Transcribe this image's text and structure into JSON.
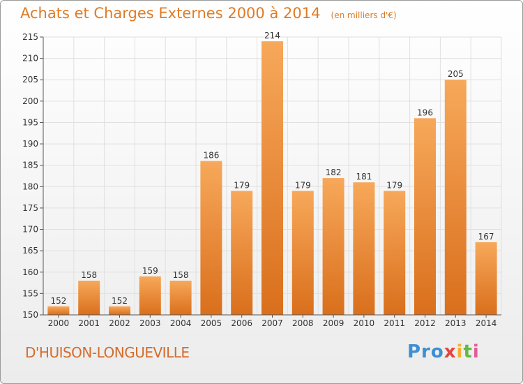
{
  "title": "Achats et Charges Externes 2000 à 2014",
  "subtitle": "(en milliers d'€)",
  "commune": "D'HUISON-LONGUEVILLE",
  "logo": [
    "Pro",
    "x",
    "i",
    "t",
    "i"
  ],
  "colors": {
    "bar_top": "#f7a85a",
    "bar_bottom": "#d96f1c",
    "title": "#e07a24",
    "grid": "#e0e0e0"
  },
  "chart_data": {
    "type": "bar",
    "categories": [
      "2000",
      "2001",
      "2002",
      "2003",
      "2004",
      "2005",
      "2006",
      "2007",
      "2008",
      "2009",
      "2010",
      "2011",
      "2012",
      "2013",
      "2014"
    ],
    "values": [
      152,
      158,
      152,
      159,
      158,
      186,
      179,
      214,
      179,
      182,
      181,
      179,
      196,
      205,
      167
    ],
    "ylim": [
      150,
      215
    ],
    "yticks": [
      150,
      155,
      160,
      165,
      170,
      175,
      180,
      185,
      190,
      195,
      200,
      205,
      210,
      215
    ],
    "grid": true,
    "data_labels": true
  }
}
